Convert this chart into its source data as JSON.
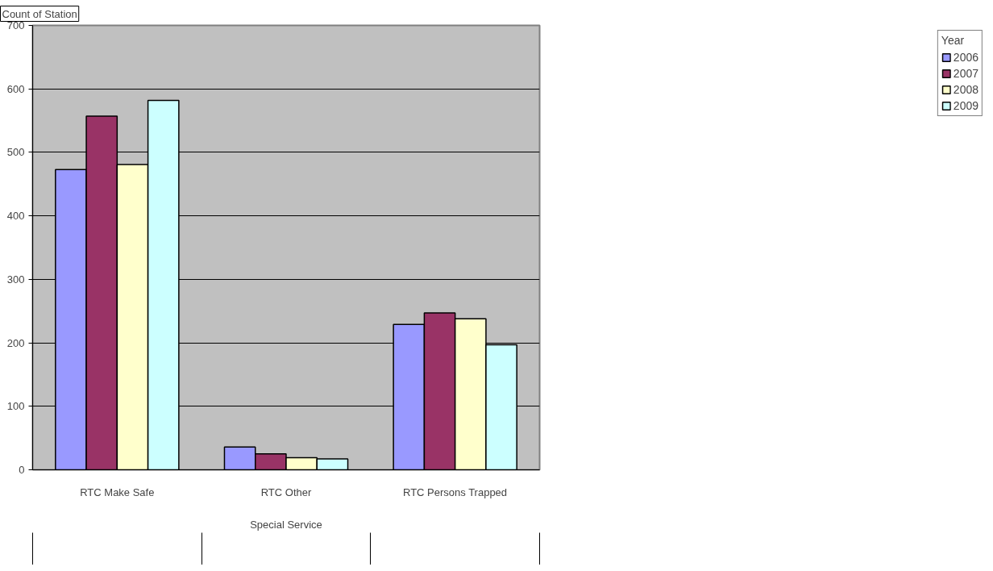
{
  "chart_data": {
    "type": "bar",
    "categories": [
      "RTC Make Safe",
      "RTC Other",
      "RTC Persons Trapped"
    ],
    "xlabel": "Special Service",
    "ylabel": "Count of Station",
    "legend_title": "Year",
    "series": [
      {
        "name": "2006",
        "color": "#9999ff",
        "values": [
          473,
          36,
          229
        ]
      },
      {
        "name": "2007",
        "color": "#993366",
        "values": [
          557,
          25,
          247
        ]
      },
      {
        "name": "2008",
        "color": "#ffffcc",
        "values": [
          481,
          19,
          238
        ]
      },
      {
        "name": "2009",
        "color": "#ccffff",
        "values": [
          582,
          17,
          197
        ]
      }
    ],
    "ylim": [
      0,
      700
    ],
    "yticks": [
      0,
      100,
      200,
      300,
      400,
      500,
      600,
      700
    ],
    "grid": "y",
    "legend": "right"
  }
}
